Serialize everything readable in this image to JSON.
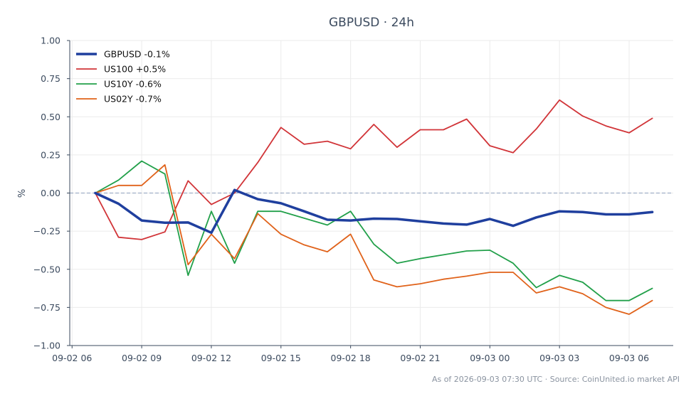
{
  "chart_data": {
    "type": "line",
    "title": "GBPUSD · 24h",
    "ylabel": "%",
    "xlabel": "",
    "ylim": [
      -1.0,
      1.0
    ],
    "yticks": [
      "1.00",
      "0.75",
      "0.50",
      "0.25",
      "0.00",
      "−0.25",
      "−0.50",
      "−0.75",
      "−1.00"
    ],
    "ytick_values": [
      1.0,
      0.75,
      0.5,
      0.25,
      0.0,
      -0.25,
      -0.5,
      -0.75,
      -1.0
    ],
    "xticks": [
      "09-02 06",
      "09-02 09",
      "09-02 12",
      "09-02 15",
      "09-02 18",
      "09-02 21",
      "09-03 00",
      "09-03 03",
      "09-03 06"
    ],
    "xtick_hours": [
      6,
      9,
      12,
      15,
      18,
      21,
      24,
      27,
      30
    ],
    "x_hours": [
      7,
      8,
      9,
      10,
      11,
      12,
      13,
      14,
      15,
      16,
      17,
      18,
      19,
      20,
      21,
      22,
      23,
      24,
      25,
      26,
      27,
      28,
      29,
      30,
      31
    ],
    "xlim_hours": [
      5.9,
      31.9
    ],
    "zero_line": true,
    "grid": true,
    "legend_position": "top-left",
    "series": [
      {
        "name": "GBPUSD -0.1%",
        "color": "#1f3f9e",
        "width": 3.5,
        "values": [
          0.0,
          -0.07,
          -0.18,
          -0.195,
          -0.193,
          -0.26,
          0.02,
          -0.04,
          -0.067,
          -0.12,
          -0.175,
          -0.18,
          -0.168,
          -0.17,
          -0.185,
          -0.2,
          -0.207,
          -0.17,
          -0.215,
          -0.16,
          -0.12,
          -0.125,
          -0.14,
          -0.14,
          -0.125
        ]
      },
      {
        "name": "US100 +0.5%",
        "color": "#d13438",
        "width": 1.8,
        "values": [
          0.0,
          -0.29,
          -0.305,
          -0.255,
          0.08,
          -0.075,
          0.0,
          0.2,
          0.43,
          0.32,
          0.34,
          0.29,
          0.45,
          0.3,
          0.415,
          0.415,
          0.485,
          0.31,
          0.265,
          0.42,
          0.61,
          0.505,
          0.44,
          0.395,
          0.49
        ]
      },
      {
        "name": "US10Y -0.6%",
        "color": "#22a04a",
        "width": 1.8,
        "values": [
          0.0,
          0.085,
          0.21,
          0.125,
          -0.54,
          -0.12,
          -0.46,
          -0.12,
          -0.12,
          -0.165,
          -0.21,
          -0.12,
          -0.335,
          -0.46,
          -0.43,
          -0.405,
          -0.38,
          -0.375,
          -0.46,
          -0.62,
          -0.54,
          -0.585,
          -0.705,
          -0.705,
          -0.625
        ]
      },
      {
        "name": "US02Y -0.7%",
        "color": "#e0621a",
        "width": 1.8,
        "values": [
          0.0,
          0.05,
          0.05,
          0.185,
          -0.47,
          -0.27,
          -0.43,
          -0.135,
          -0.27,
          -0.34,
          -0.385,
          -0.27,
          -0.57,
          -0.615,
          -0.595,
          -0.565,
          -0.545,
          -0.52,
          -0.52,
          -0.655,
          -0.615,
          -0.66,
          -0.75,
          -0.795,
          -0.705
        ]
      }
    ]
  },
  "footer": {
    "text": "As of 2026-09-03 07:30 UTC · Source: CoinUnited.io market API"
  }
}
